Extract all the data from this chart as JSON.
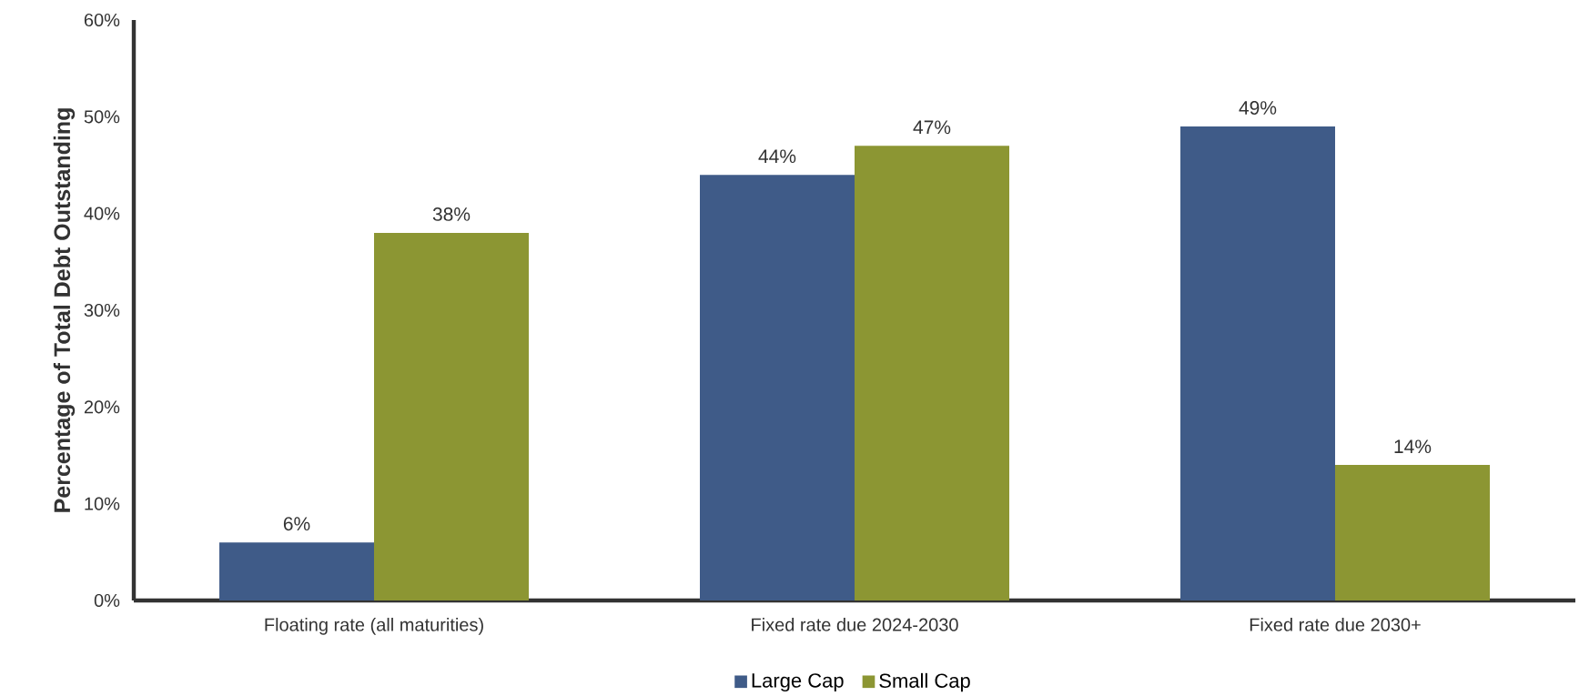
{
  "chart_data": {
    "type": "bar",
    "ylabel": "Percentage of Total Debt Outstanding",
    "categories": [
      "Floating rate (all maturities)",
      "Fixed rate due 2024-2030",
      "Fixed rate due 2030+"
    ],
    "series": [
      {
        "name": "Large Cap",
        "color": "#3f5b88",
        "values": [
          6,
          44,
          49
        ],
        "value_labels": [
          "6%",
          "44%",
          "49%"
        ]
      },
      {
        "name": "Small Cap",
        "color": "#8c9633",
        "values": [
          38,
          47,
          14
        ],
        "value_labels": [
          "38%",
          "47%",
          "14%"
        ]
      }
    ],
    "ylim": [
      0,
      60
    ],
    "yticks": [
      {
        "value": 0,
        "label": "0%"
      },
      {
        "value": 10,
        "label": "10%"
      },
      {
        "value": 20,
        "label": "20%"
      },
      {
        "value": 30,
        "label": "30%"
      },
      {
        "value": 40,
        "label": "40%"
      },
      {
        "value": 50,
        "label": "50%"
      },
      {
        "value": 60,
        "label": "60%"
      }
    ],
    "legend": "bottom"
  }
}
